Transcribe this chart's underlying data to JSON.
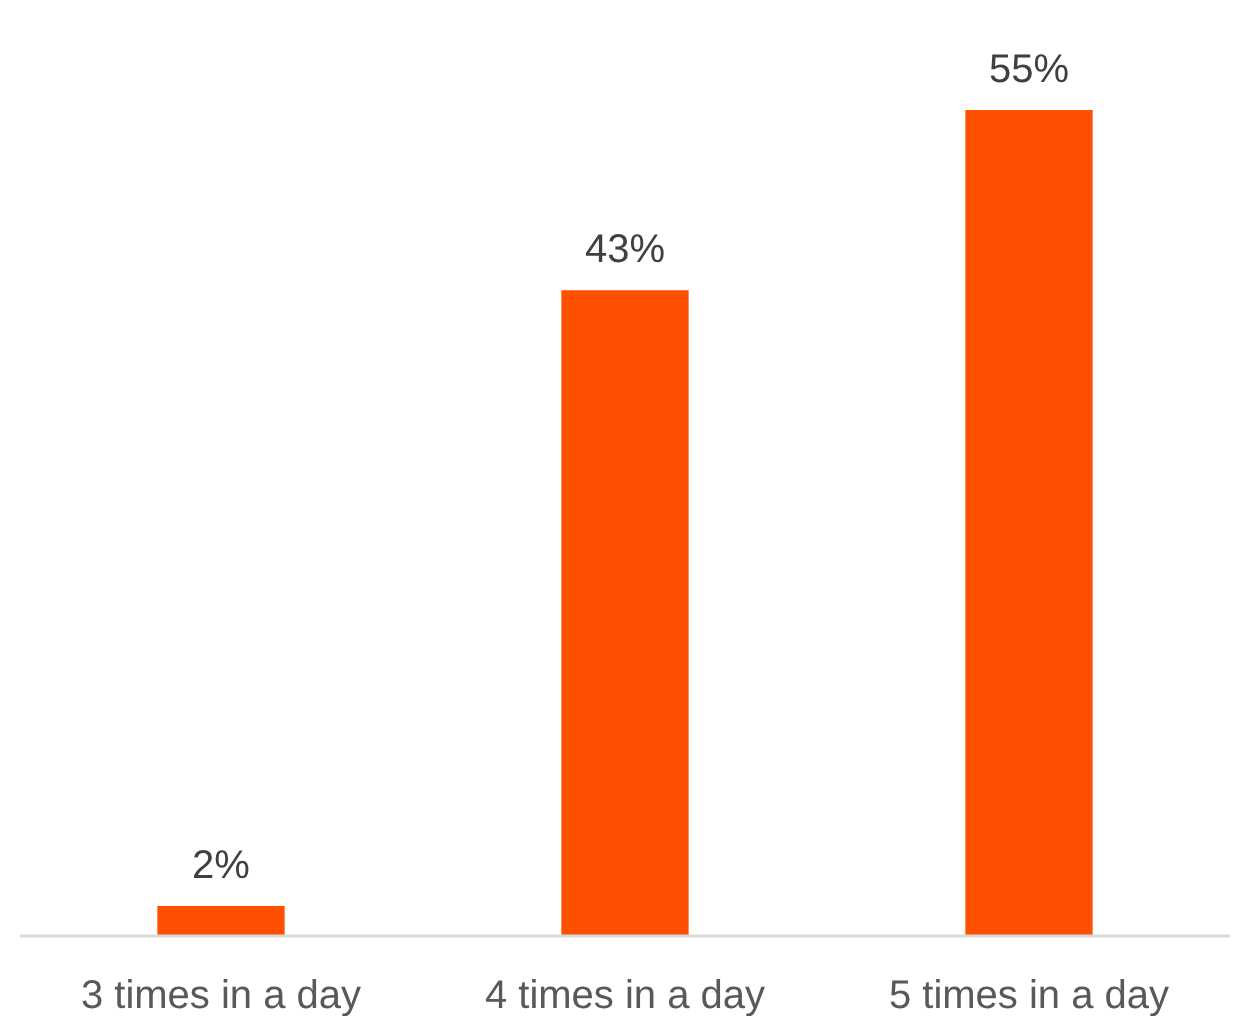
{
  "chart_data": {
    "type": "bar",
    "categories": [
      "3 times in a day",
      "4 times in a day",
      "5 times in a day"
    ],
    "values": [
      2,
      43,
      55
    ],
    "value_labels": [
      "2%",
      "43%",
      "55%"
    ],
    "color": "#fe5000"
  }
}
